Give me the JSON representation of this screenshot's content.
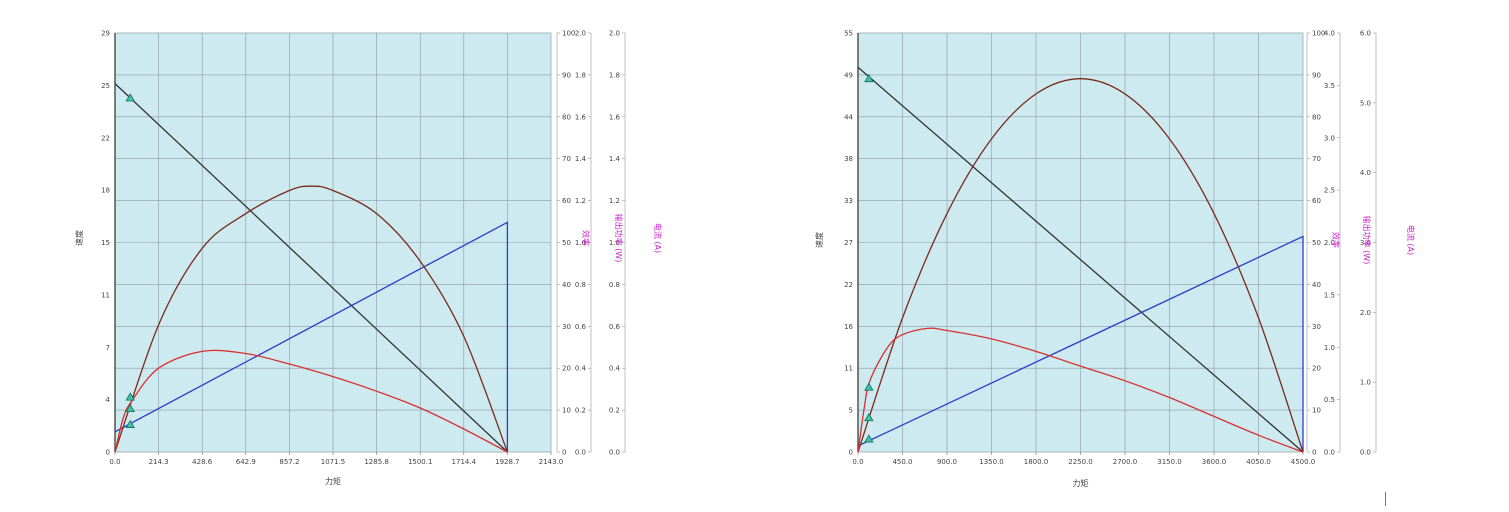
{
  "chart_data": [
    {
      "type": "line",
      "xlabel": "力矩",
      "ylabel": "速度",
      "y2label": "效率",
      "y3label": "输出功率 (W)",
      "y4label": "电流 (A)",
      "xlim": [
        0,
        2143.0
      ],
      "ylim": [
        0,
        29
      ],
      "y2lim": [
        0,
        100
      ],
      "y3lim": [
        0,
        2.0
      ],
      "y4lim": [
        0,
        2.0
      ],
      "x_ticks": [
        "0.0",
        "214.3",
        "428.6",
        "642.9",
        "857.2",
        "1071.5",
        "1285.8",
        "1500.1",
        "1714.4",
        "1928.7",
        "2143.0"
      ],
      "y_ticks": [
        "0",
        "4",
        "7",
        "11",
        "15",
        "18",
        "22",
        "25",
        "29"
      ],
      "y2_ticks": [
        "0",
        "10",
        "20",
        "30",
        "40",
        "50",
        "60",
        "70",
        "80",
        "90",
        "100"
      ],
      "y3_ticks": [
        "0.0",
        "0.2",
        "0.4",
        "0.6",
        "0.8",
        "1.0",
        "1.2",
        "1.4",
        "1.6",
        "1.8",
        "2.0"
      ],
      "y4_ticks": [
        "0.0",
        "0.2",
        "0.4",
        "0.6",
        "0.8",
        "1.0",
        "1.2",
        "1.4",
        "1.6",
        "1.8",
        "2.0"
      ],
      "grid": true,
      "series": [
        {
          "role": "speed",
          "color": "#333333",
          "axis": "y",
          "x": [
            0,
            1928.7
          ],
          "y": [
            25.5,
            0
          ]
        },
        {
          "role": "current",
          "color": "#2a3ec8",
          "axis": "y",
          "x": [
            0,
            1928.7,
            1928.7
          ],
          "y": [
            1.4,
            15.9,
            0
          ]
        },
        {
          "role": "output",
          "color": "#7a2a1a",
          "axis": "y",
          "x": [
            0,
            214.3,
            428.6,
            642.9,
            857.2,
            964.4,
            1071.5,
            1285.8,
            1500.1,
            1714.4,
            1928.7
          ],
          "y": [
            0,
            8.8,
            14.1,
            16.5,
            18.1,
            18.4,
            18.1,
            16.5,
            13.2,
            8.0,
            0
          ]
        },
        {
          "role": "efficiency",
          "color": "#d83030",
          "axis": "y2",
          "x": [
            0,
            40,
            80,
            214.3,
            428.6,
            642.9,
            857.2,
            1071.5,
            1285.8,
            1500.1,
            1714.4,
            1928.7
          ],
          "y": [
            0,
            8,
            12,
            20,
            24,
            23.5,
            21,
            18,
            14.5,
            10.5,
            5.5,
            0
          ]
        }
      ],
      "markers_y": [
        24.5,
        3.8,
        3.0,
        1.9
      ],
      "marker_x": 75
    },
    {
      "type": "line",
      "xlabel": "力矩",
      "ylabel": "速度",
      "y2label": "效率",
      "y3label": "输出功率 (W)",
      "y4label": "电流 (A)",
      "xlim": [
        0,
        4500.0
      ],
      "ylim": [
        0,
        55
      ],
      "y2lim": [
        0,
        100
      ],
      "y3lim": [
        0,
        4.0
      ],
      "y4lim": [
        0,
        6.0
      ],
      "x_ticks": [
        "0.0",
        "450.0",
        "900.0",
        "1350.0",
        "1800.0",
        "2250.0",
        "2700.0",
        "3150.0",
        "3600.0",
        "4050.0",
        "4500.0"
      ],
      "y_ticks": [
        "0",
        "5",
        "11",
        "16",
        "22",
        "27",
        "33",
        "38",
        "44",
        "49",
        "55"
      ],
      "y2_ticks": [
        "0",
        "10",
        "20",
        "30",
        "40",
        "50",
        "60",
        "70",
        "80",
        "90",
        "100"
      ],
      "y3_ticks": [
        "0.0",
        "0.5",
        "1.0",
        "1.5",
        "2.0",
        "2.5",
        "3.0",
        "3.5",
        "4.0"
      ],
      "y4_ticks": [
        "0.0",
        "1.0",
        "2.0",
        "3.0",
        "4.0",
        "5.0",
        "6.0"
      ],
      "grid": true,
      "series": [
        {
          "role": "speed",
          "color": "#333333",
          "axis": "y",
          "x": [
            0,
            4500.0
          ],
          "y": [
            50.5,
            0
          ]
        },
        {
          "role": "current",
          "color": "#2a3ec8",
          "axis": "y",
          "x": [
            0,
            4500.0,
            4500.0
          ],
          "y": [
            0.8,
            28.3,
            0
          ]
        },
        {
          "role": "output",
          "color": "#7a2a1a",
          "axis": "y",
          "x": [
            0,
            450,
            900,
            1350,
            1800,
            2250,
            2700,
            3150,
            3600,
            4050,
            4500
          ],
          "y": [
            0,
            17.6,
            31.3,
            41.1,
            47.0,
            49.0,
            47.0,
            41.1,
            31.3,
            17.6,
            0
          ]
        },
        {
          "role": "efficiency",
          "color": "#d83030",
          "axis": "y2",
          "x": [
            0,
            60,
            120,
            300,
            450,
            700,
            900,
            1350,
            1800,
            2250,
            2700,
            3150,
            3600,
            4050,
            4500
          ],
          "y": [
            0,
            10,
            17,
            25,
            28,
            29.5,
            29,
            27,
            24,
            20.5,
            17,
            13,
            8.5,
            4,
            0
          ]
        }
      ],
      "markers_y": [
        49,
        8.5,
        4.5,
        1.7
      ],
      "marker_x": 110
    }
  ]
}
